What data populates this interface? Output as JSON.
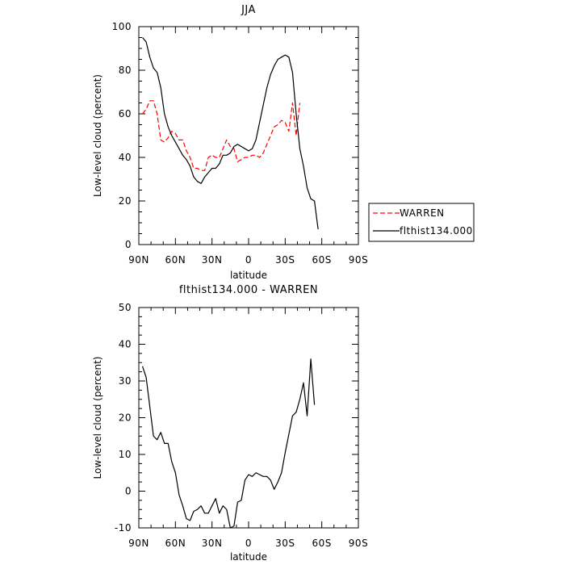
{
  "chart_data": [
    {
      "type": "line",
      "title": "JJA",
      "xlabel": "latitude",
      "ylabel": "Low-level cloud (percent)",
      "xlim": [
        90,
        -90
      ],
      "ylim": [
        0,
        100
      ],
      "x_ticks": [
        90,
        60,
        30,
        0,
        -30,
        -60,
        -90
      ],
      "x_tick_labels": [
        "90N",
        "60N",
        "30N",
        "0",
        "30S",
        "60S",
        "90S"
      ],
      "y_ticks": [
        0,
        20,
        40,
        60,
        80,
        100
      ],
      "y_tick_labels": [
        "0",
        "20",
        "40",
        "60",
        "80",
        "100"
      ],
      "legend": {
        "placement": "right-outside"
      },
      "series": [
        {
          "name": "WARREN",
          "color": "#ff0000",
          "dash": "dashed",
          "x": [
            87,
            84,
            81,
            78,
            75,
            72,
            69,
            66,
            63,
            60,
            57,
            54,
            51,
            48,
            45,
            42,
            39,
            36,
            33,
            30,
            27,
            24,
            21,
            18,
            15,
            12,
            9,
            6,
            3,
            0,
            -3,
            -6,
            -9,
            -12,
            -15,
            -18,
            -21,
            -24,
            -27,
            -30,
            -33,
            -36,
            -39,
            -42,
            -45,
            -48,
            -51,
            -54,
            -57,
            -60
          ],
          "y": [
            60,
            62,
            66,
            66,
            60,
            48,
            47,
            49,
            52,
            51,
            48,
            48,
            43,
            40,
            35,
            35,
            34,
            34,
            40,
            41,
            40,
            40,
            44,
            48,
            45,
            44,
            38,
            39,
            40,
            40,
            41,
            41,
            40,
            42,
            46,
            50,
            54,
            55,
            57,
            56,
            52,
            65,
            50,
            65,
            null,
            null,
            null,
            null,
            null,
            null
          ]
        },
        {
          "name": "flthist134.000",
          "color": "#000000",
          "dash": "solid",
          "x": [
            87,
            84,
            81,
            78,
            75,
            72,
            69,
            66,
            63,
            60,
            57,
            54,
            51,
            48,
            45,
            42,
            39,
            36,
            33,
            30,
            27,
            24,
            21,
            18,
            15,
            12,
            9,
            6,
            3,
            0,
            -3,
            -6,
            -9,
            -12,
            -15,
            -18,
            -21,
            -24,
            -27,
            -30,
            -33,
            -36,
            -39,
            -42,
            -45,
            -48,
            -51,
            -54,
            -57,
            -60,
            -63,
            -66,
            -69,
            -72,
            -75,
            -78,
            -81,
            -84,
            -87
          ],
          "y": [
            95,
            93,
            86,
            81,
            79,
            72,
            60,
            54,
            50,
            47,
            44,
            41,
            39,
            36,
            31,
            29,
            28,
            31,
            33,
            35,
            35,
            37,
            41,
            41,
            42,
            45,
            46,
            45,
            44,
            43,
            44,
            48,
            56,
            64,
            72,
            78,
            82,
            85,
            86,
            87,
            86,
            79,
            60,
            44,
            36,
            26,
            21,
            20,
            7,
            null,
            null,
            null,
            null,
            null,
            null,
            null,
            null,
            null,
            null
          ]
        }
      ]
    },
    {
      "type": "line",
      "title": "flthist134.000 - WARREN",
      "xlabel": "latitude",
      "ylabel": "Low-level cloud (percent)",
      "xlim": [
        90,
        -90
      ],
      "ylim": [
        -10,
        50
      ],
      "x_ticks": [
        90,
        60,
        30,
        0,
        -30,
        -60,
        -90
      ],
      "x_tick_labels": [
        "90N",
        "60N",
        "30N",
        "0",
        "30S",
        "60S",
        "90S"
      ],
      "y_ticks": [
        -10,
        0,
        10,
        20,
        30,
        40,
        50
      ],
      "y_tick_labels": [
        "-10",
        "0",
        "10",
        "20",
        "30",
        "40",
        "50"
      ],
      "series": [
        {
          "color": "#000000",
          "dash": "solid",
          "x": [
            87,
            84,
            81,
            78,
            75,
            72,
            69,
            66,
            63,
            60,
            57,
            54,
            51,
            48,
            45,
            42,
            39,
            36,
            33,
            30,
            27,
            24,
            21,
            18,
            15,
            12,
            9,
            6,
            3,
            0,
            -3,
            -6,
            -9,
            -12,
            -15,
            -18,
            -21,
            -24,
            -27,
            -30,
            -33,
            -36,
            -39,
            -42,
            -45,
            -48,
            -51,
            -54,
            -57,
            -60
          ],
          "y": [
            34,
            31,
            23,
            15,
            14,
            16,
            13,
            13,
            8,
            5,
            -1,
            -4,
            -7.5,
            -8,
            -5.5,
            -5,
            -4,
            -6,
            -6,
            -4,
            -2,
            -6,
            -4,
            -5,
            -10,
            -9.5,
            -3,
            -2.5,
            3,
            4.5,
            4,
            5,
            4.5,
            4,
            4,
            3,
            0.5,
            2.5,
            5,
            10.5,
            15.5,
            20.5,
            21.5,
            25,
            29.5,
            20.5,
            36,
            23.5,
            null,
            null
          ]
        }
      ]
    }
  ]
}
